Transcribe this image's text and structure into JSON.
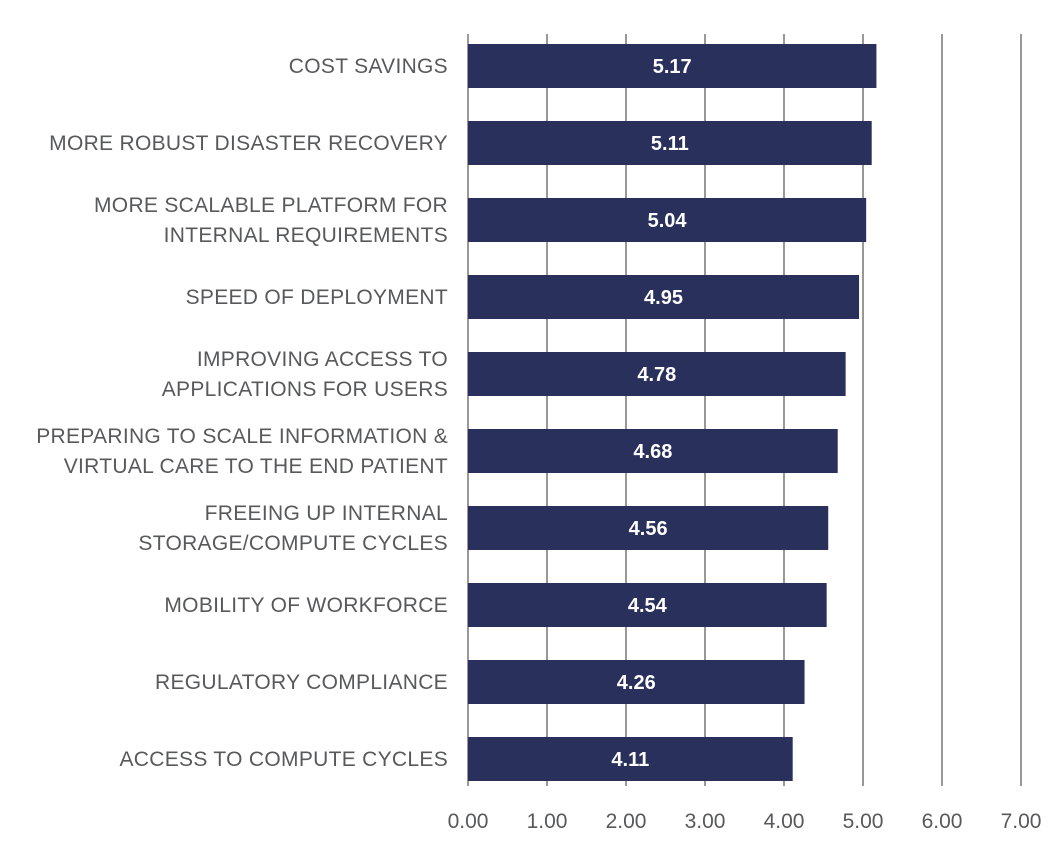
{
  "chart_data": {
    "type": "bar",
    "orientation": "horizontal",
    "categories": [
      [
        "COST SAVINGS"
      ],
      [
        "MORE ROBUST DISASTER RECOVERY"
      ],
      [
        "MORE SCALABLE PLATFORM FOR",
        "INTERNAL REQUIREMENTS"
      ],
      [
        "SPEED OF DEPLOYMENT"
      ],
      [
        "IMPROVING ACCESS TO",
        "APPLICATIONS FOR USERS"
      ],
      [
        "PREPARING TO SCALE INFORMATION &",
        "VIRTUAL CARE TO THE END PATIENT"
      ],
      [
        "FREEING UP INTERNAL",
        "STORAGE/COMPUTE CYCLES"
      ],
      [
        "MOBILITY OF WORKFORCE"
      ],
      [
        "REGULATORY COMPLIANCE"
      ],
      [
        "ACCESS TO COMPUTE CYCLES"
      ]
    ],
    "values": [
      5.17,
      5.11,
      5.04,
      4.95,
      4.78,
      4.68,
      4.56,
      4.54,
      4.26,
      4.11
    ],
    "data_labels": [
      "5.17",
      "5.11",
      "5.04",
      "4.95",
      "4.78",
      "4.68",
      "4.56",
      "4.54",
      "4.26",
      "4.11"
    ],
    "xlim": [
      0,
      7
    ],
    "x_ticks": [
      0,
      1,
      2,
      3,
      4,
      5,
      6,
      7
    ],
    "x_tick_labels": [
      "0.00",
      "1.00",
      "2.00",
      "3.00",
      "4.00",
      "5.00",
      "6.00",
      "7.00"
    ],
    "grid": "vertical",
    "legend": "none",
    "colors": {
      "bar": "#29305b",
      "grid": "#555555",
      "text": "#58595b",
      "bar_label": "#ffffff"
    }
  }
}
